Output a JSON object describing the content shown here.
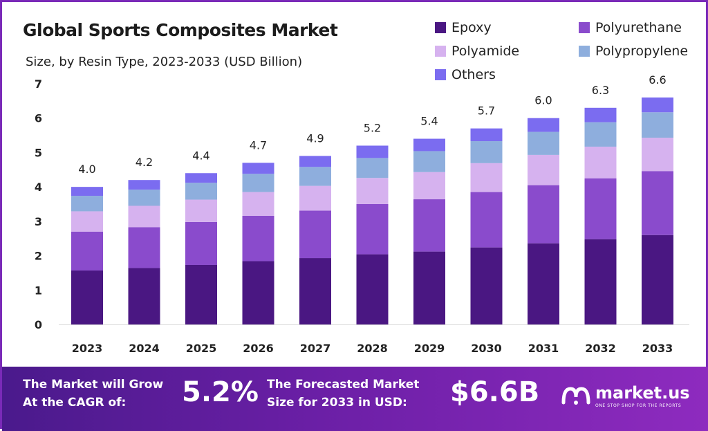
{
  "header": {
    "title": "Global Sports Composites  Market",
    "subtitle": "Size, by Resin Type, 2023-2033 (USD Billion)"
  },
  "legend": [
    {
      "label": "Epoxy",
      "color": "#4a1782"
    },
    {
      "label": "Polyurethane",
      "color": "#8a4bcc"
    },
    {
      "label": "Polyamide",
      "color": "#d6b2ef"
    },
    {
      "label": "Polypropylene",
      "color": "#8eaedd"
    },
    {
      "label": "Others",
      "color": "#7b6cf0"
    }
  ],
  "chart_data": {
    "type": "bar",
    "stacked": true,
    "title": "Global Sports Composites  Market",
    "subtitle": "Size, by Resin Type, 2023-2033 (USD Billion)",
    "xlabel": "",
    "ylabel": "",
    "categories": [
      "2023",
      "2024",
      "2025",
      "2026",
      "2027",
      "2028",
      "2029",
      "2030",
      "2031",
      "2032",
      "2033"
    ],
    "ylim": [
      0,
      7
    ],
    "yticks": [
      "0",
      "1",
      "2",
      "3",
      "4",
      "5",
      "6",
      "7"
    ],
    "totals": [
      "4.0",
      "4.2",
      "4.4",
      "4.7",
      "4.9",
      "5.2",
      "5.4",
      "5.7",
      "6.0",
      "6.3",
      "6.6"
    ],
    "grid": false,
    "legend_position": "top-right",
    "series": [
      {
        "name": "Epoxy",
        "color": "#4a1782",
        "values": [
          1.57,
          1.64,
          1.73,
          1.84,
          1.93,
          2.04,
          2.12,
          2.24,
          2.36,
          2.48,
          2.6
        ]
      },
      {
        "name": "Polyurethane",
        "color": "#8a4bcc",
        "values": [
          1.13,
          1.19,
          1.25,
          1.32,
          1.38,
          1.46,
          1.52,
          1.61,
          1.69,
          1.77,
          1.86
        ]
      },
      {
        "name": "Polyamide",
        "color": "#d6b2ef",
        "values": [
          0.59,
          0.62,
          0.65,
          0.69,
          0.72,
          0.76,
          0.79,
          0.84,
          0.88,
          0.92,
          0.97
        ]
      },
      {
        "name": "Polypropylene",
        "color": "#8eaedd",
        "values": [
          0.45,
          0.47,
          0.49,
          0.53,
          0.55,
          0.58,
          0.61,
          0.64,
          0.67,
          0.71,
          0.74
        ]
      },
      {
        "name": "Others",
        "color": "#7b6cf0",
        "values": [
          0.26,
          0.28,
          0.28,
          0.32,
          0.32,
          0.36,
          0.36,
          0.37,
          0.4,
          0.42,
          0.43
        ]
      }
    ]
  },
  "footer": {
    "cagr_text_1": "The Market will Grow",
    "cagr_text_2": "At the CAGR of:",
    "cagr_value": "5.2%",
    "size_text_1": "The Forecasted Market",
    "size_text_2": "Size for 2033 in USD:",
    "size_value": "$6.6B",
    "logo_name": "market.us",
    "logo_tagline": "ONE STOP SHOP FOR THE REPORTS"
  }
}
